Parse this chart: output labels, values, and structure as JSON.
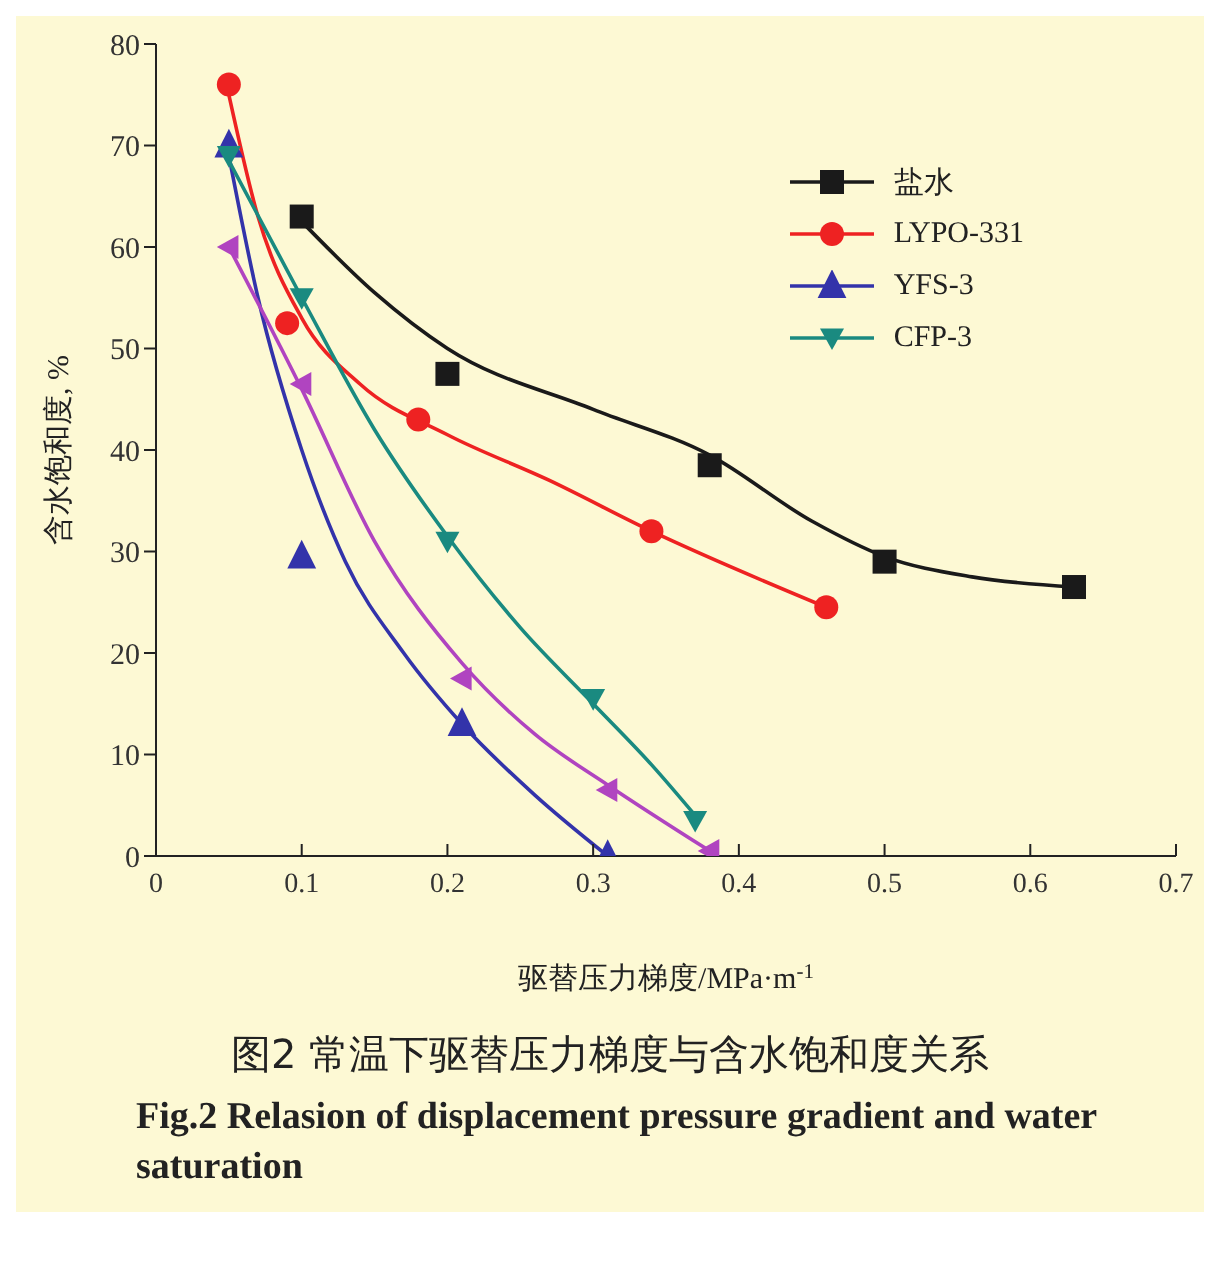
{
  "chart_data": {
    "type": "scatter",
    "title": "图2  常温下驱替压力梯度与含水饱和度关系",
    "subtitle": "Fig.2  Relasion of displacement pressure gradient and water saturation",
    "xlabel": "驱替压力梯度/MPa·m$^{-1}$",
    "ylabel": "含水饱和度, %",
    "xlim": [
      0,
      0.7
    ],
    "xticks": [
      0,
      0.1,
      0.2,
      0.3,
      0.4,
      0.5,
      0.6,
      0.7
    ],
    "ylim": [
      0,
      80
    ],
    "yticks": [
      0,
      10,
      20,
      30,
      40,
      50,
      60,
      70,
      80
    ],
    "grid": false,
    "legend": "top right",
    "series": [
      {
        "name": "盐水",
        "marker": "square",
        "color": "#1a1a1a",
        "x": [
          0.1,
          0.2,
          0.38,
          0.5,
          0.63
        ],
        "values": [
          63,
          47.5,
          38.5,
          29,
          26.5
        ]
      },
      {
        "name": "LYPO-331",
        "marker": "circle",
        "color": "#ee2222",
        "x": [
          0.05,
          0.09,
          0.18,
          0.34,
          0.46
        ],
        "values": [
          76,
          52.5,
          43,
          32,
          24.5
        ]
      },
      {
        "name": "YFS-3",
        "marker": "triangle",
        "color": "#3333aa",
        "x": [
          0.05,
          0.1,
          0.21,
          0.31
        ],
        "values": [
          70,
          29.5,
          13,
          0
        ]
      },
      {
        "name": "CFP-3",
        "marker": "triangle-down",
        "color": "#1a8a80",
        "x": [
          0.05,
          0.1,
          0.2,
          0.3,
          0.37
        ],
        "values": [
          69,
          55,
          31,
          15.5,
          3.5
        ]
      },
      {
        "marker": "triangle-left",
        "color": "#b044c0",
        "x": [
          0.05,
          0.1,
          0.21,
          0.31,
          0.38
        ],
        "values": [
          60,
          46.5,
          17.5,
          6.5,
          0.5
        ]
      },
      {
        "type": "line",
        "marker": "none",
        "color": "#1a1a1a",
        "x": [
          0.1,
          0.15,
          0.2,
          0.3,
          0.38,
          0.45,
          0.5,
          0.56,
          0.63
        ],
        "values": [
          62.5,
          55.5,
          50,
          44,
          39.5,
          33,
          29.5,
          27.5,
          26.5
        ]
      },
      {
        "type": "line",
        "marker": "none",
        "color": "#ee2222",
        "x": [
          0.05,
          0.07,
          0.1,
          0.14,
          0.2,
          0.27,
          0.34,
          0.46
        ],
        "values": [
          75,
          63,
          53,
          46.5,
          41.5,
          37,
          32,
          24.5
        ]
      },
      {
        "type": "line",
        "marker": "none",
        "color": "#3333aa",
        "x": [
          0.05,
          0.07,
          0.1,
          0.13,
          0.17,
          0.21,
          0.26,
          0.31
        ],
        "values": [
          69,
          55,
          40,
          29,
          20,
          13,
          6,
          0
        ]
      },
      {
        "type": "line",
        "marker": "none",
        "color": "#1a8a80",
        "x": [
          0.05,
          0.1,
          0.15,
          0.2,
          0.25,
          0.3,
          0.34,
          0.37
        ],
        "values": [
          68.5,
          55,
          42,
          31.5,
          22.5,
          15,
          9,
          4
        ]
      },
      {
        "type": "line",
        "marker": "none",
        "color": "#b044c0",
        "x": [
          0.05,
          0.1,
          0.15,
          0.21,
          0.26,
          0.31,
          0.38
        ],
        "values": [
          60,
          46,
          31,
          19,
          12,
          7,
          0.5
        ]
      }
    ]
  }
}
